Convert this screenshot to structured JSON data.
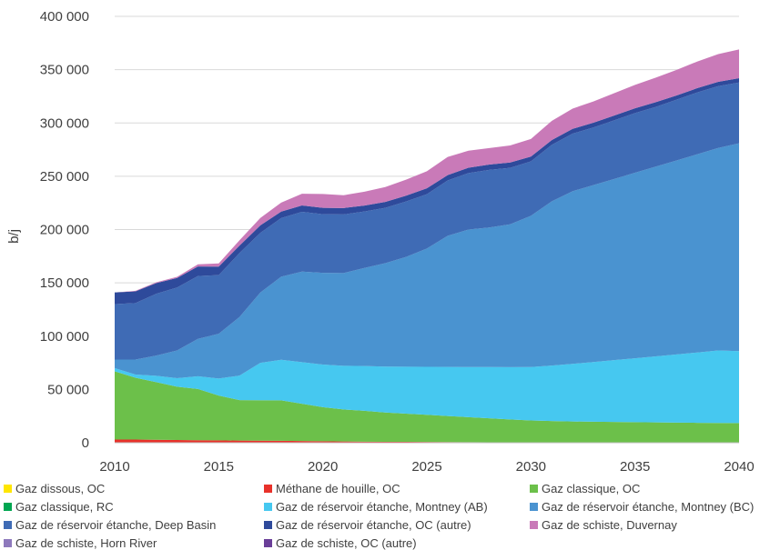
{
  "chart_data": {
    "type": "area",
    "stacked": true,
    "ylabel": "b/j",
    "xlabel": "",
    "ylim": [
      0,
      400000
    ],
    "yticks": [
      0,
      50000,
      100000,
      150000,
      200000,
      250000,
      300000,
      350000,
      400000
    ],
    "ytick_labels": [
      "0",
      "50 000",
      "100 000",
      "150 000",
      "200 000",
      "250 000",
      "300 000",
      "350 000",
      "400 000"
    ],
    "xticks": [
      2010,
      2015,
      2020,
      2025,
      2030,
      2035,
      2040
    ],
    "xtick_labels": [
      "2010",
      "2015",
      "2020",
      "2025",
      "2030",
      "2035",
      "2040"
    ],
    "x": [
      2010,
      2011,
      2012,
      2013,
      2014,
      2015,
      2016,
      2017,
      2018,
      2019,
      2020,
      2021,
      2022,
      2023,
      2024,
      2025,
      2026,
      2027,
      2028,
      2029,
      2030,
      2031,
      2032,
      2033,
      2034,
      2035,
      2036,
      2037,
      2038,
      2039,
      2040
    ],
    "series": [
      {
        "name": "Gaz dissous, OC",
        "color": "#FFE600",
        "values": [
          0,
          0,
          0,
          0,
          0,
          0,
          0,
          0,
          0,
          0,
          0,
          0,
          0,
          0,
          0,
          0,
          0,
          0,
          0,
          0,
          0,
          0,
          0,
          0,
          0,
          0,
          0,
          0,
          0,
          0,
          0
        ]
      },
      {
        "name": "Méthane de houille, OC",
        "color": "#E8312A",
        "values": [
          3000,
          3000,
          2800,
          2600,
          2400,
          2200,
          2000,
          1900,
          1800,
          1600,
          1400,
          1200,
          1000,
          900,
          800,
          700,
          600,
          500,
          450,
          400,
          350,
          300,
          250,
          200,
          180,
          160,
          140,
          120,
          100,
          80,
          60
        ]
      },
      {
        "name": "Gaz classique, OC",
        "color": "#6CC04A",
        "values": [
          64000,
          58000,
          54000,
          50000,
          48000,
          42000,
          38000,
          38000,
          38000,
          35000,
          32000,
          30000,
          29000,
          27500,
          26500,
          25500,
          24500,
          23500,
          22500,
          21500,
          20600,
          20100,
          19700,
          19500,
          19300,
          19100,
          18900,
          18700,
          18600,
          18500,
          18400
        ]
      },
      {
        "name": "Gaz classique, RC",
        "color": "#00A651",
        "values": [
          0,
          0,
          0,
          0,
          0,
          0,
          0,
          0,
          0,
          0,
          0,
          0,
          0,
          0,
          0,
          0,
          0,
          0,
          0,
          0,
          0,
          0,
          0,
          0,
          0,
          0,
          0,
          0,
          0,
          0,
          0
        ]
      },
      {
        "name": "Gaz de réservoir étanche, Montney (AB)",
        "color": "#46C8F0",
        "values": [
          3000,
          3000,
          6000,
          8000,
          12000,
          16000,
          23000,
          35000,
          38000,
          39000,
          40000,
          41000,
          42000,
          43000,
          44000,
          45000,
          46000,
          47000,
          48000,
          49000,
          50000,
          52000,
          54000,
          56000,
          58000,
          60000,
          62000,
          64000,
          66000,
          68000,
          67500
        ]
      },
      {
        "name": "Gaz de réservoir étanche, Montney (BC)",
        "color": "#4A93D0",
        "values": [
          8000,
          14000,
          19000,
          26000,
          35000,
          42000,
          55000,
          66000,
          78000,
          85000,
          86000,
          87000,
          92000,
          97000,
          103000,
          111000,
          123000,
          129000,
          131000,
          134000,
          142000,
          154000,
          162000,
          166000,
          170000,
          174000,
          178000,
          182000,
          186000,
          190000,
          195000
        ]
      },
      {
        "name": "Gaz de réservoir étanche, Deep Basin",
        "color": "#3F6BB5",
        "values": [
          52000,
          53000,
          58000,
          59000,
          59000,
          55000,
          60000,
          56000,
          55000,
          56000,
          55000,
          55000,
          53000,
          52000,
          52000,
          51000,
          52000,
          53000,
          54000,
          53000,
          51000,
          53000,
          54000,
          54000,
          55000,
          56000,
          56000,
          57000,
          58000,
          58000,
          57000
        ]
      },
      {
        "name": "Gaz de réservoir étanche, OC (autre)",
        "color": "#2E4A9B",
        "values": [
          11000,
          11000,
          10000,
          9000,
          9000,
          8000,
          7000,
          7000,
          6000,
          6000,
          6000,
          6000,
          5500,
          5500,
          5500,
          5500,
          5000,
          5000,
          5000,
          5000,
          4500,
          4500,
          4500,
          4500,
          4500,
          4500,
          4500,
          4000,
          4000,
          4000,
          4000
        ]
      },
      {
        "name": "Gaz de schiste, Duvernay",
        "color": "#C97AB8",
        "values": [
          0,
          500,
          700,
          1000,
          2000,
          3000,
          5000,
          7000,
          8500,
          11000,
          13000,
          12000,
          13000,
          14000,
          15000,
          16000,
          17000,
          16000,
          15500,
          16000,
          16500,
          18000,
          19000,
          20000,
          21000,
          22000,
          23000,
          24000,
          25000,
          26000,
          27000
        ]
      },
      {
        "name": "Gaz de schiste, Horn River",
        "color": "#8E79BC",
        "values": [
          0,
          0,
          0,
          0,
          0,
          0,
          0,
          0,
          0,
          0,
          0,
          0,
          0,
          0,
          0,
          0,
          0,
          0,
          0,
          0,
          0,
          0,
          0,
          0,
          0,
          0,
          0,
          0,
          0,
          0,
          0
        ]
      },
      {
        "name": "Gaz de schiste, OC (autre)",
        "color": "#6A3E98",
        "values": [
          0,
          0,
          0,
          0,
          0,
          0,
          0,
          0,
          0,
          0,
          0,
          0,
          0,
          0,
          0,
          0,
          0,
          0,
          0,
          0,
          0,
          0,
          0,
          0,
          0,
          0,
          0,
          0,
          0,
          0,
          0
        ]
      }
    ],
    "legend_position": "bottom",
    "grid": true
  }
}
